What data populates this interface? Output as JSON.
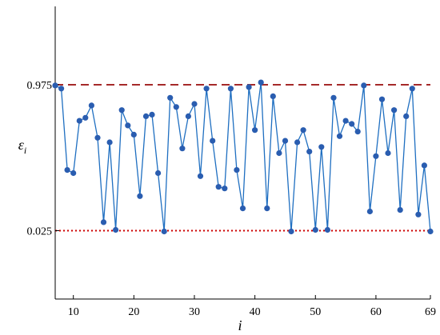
{
  "chart_data": {
    "type": "line",
    "xlabel": "i",
    "ylabel": {
      "base": "ε",
      "sub": "i"
    },
    "xlim": [
      7,
      69
    ],
    "ylim": [
      -0.42,
      1.485
    ],
    "x_ticks": [
      10,
      20,
      30,
      40,
      50,
      60,
      69
    ],
    "y_ticks": [
      {
        "value": 0.025,
        "label": "0.025"
      },
      {
        "value": 0.975,
        "label": "0.975"
      }
    ],
    "reference_lines": [
      {
        "value": 0.975,
        "style": "dashed",
        "color": "#a52a2a"
      },
      {
        "value": 0.025,
        "style": "dotted",
        "color": "#cc0000"
      }
    ],
    "series": [
      {
        "color": "#1f6fc1",
        "marker_color": "#2a5db0",
        "x": [
          7,
          8,
          9,
          10,
          11,
          12,
          13,
          14,
          15,
          16,
          17,
          18,
          19,
          20,
          21,
          22,
          23,
          24,
          25,
          26,
          27,
          28,
          29,
          30,
          31,
          32,
          33,
          34,
          35,
          36,
          37,
          38,
          39,
          40,
          41,
          42,
          43,
          44,
          45,
          46,
          47,
          48,
          49,
          50,
          51,
          52,
          53,
          54,
          55,
          56,
          57,
          58,
          59,
          60,
          61,
          62,
          63,
          64,
          65,
          66,
          67,
          68,
          69
        ],
        "y": [
          0.97,
          0.95,
          0.42,
          0.4,
          0.74,
          0.76,
          0.84,
          0.63,
          0.08,
          0.6,
          0.03,
          0.81,
          0.71,
          0.65,
          0.25,
          0.77,
          0.78,
          0.4,
          0.02,
          0.89,
          0.83,
          0.56,
          0.77,
          0.85,
          0.38,
          0.95,
          0.61,
          0.31,
          0.3,
          0.95,
          0.42,
          0.17,
          0.96,
          0.68,
          0.99,
          0.17,
          0.9,
          0.53,
          0.61,
          0.02,
          0.6,
          0.68,
          0.54,
          0.03,
          0.57,
          0.03,
          0.89,
          0.64,
          0.74,
          0.72,
          0.67,
          0.97,
          0.15,
          0.51,
          0.88,
          0.53,
          0.81,
          0.16,
          0.77,
          0.95,
          0.13,
          0.45,
          0.02
        ]
      }
    ]
  }
}
